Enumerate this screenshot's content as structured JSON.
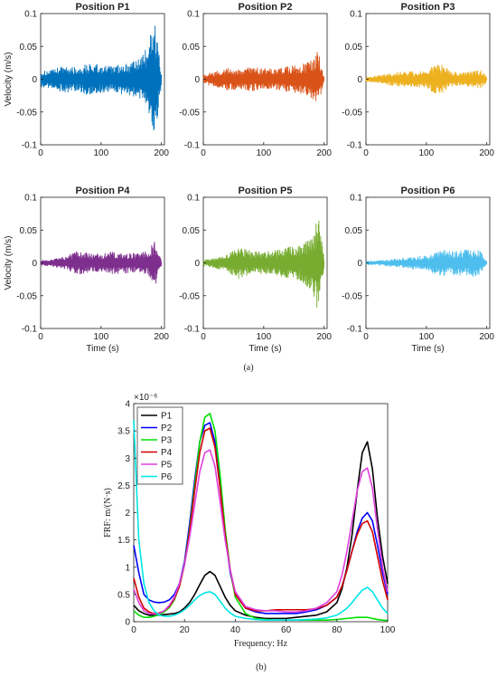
{
  "panel_a": {
    "label": "(a)",
    "ylabel": "Velocity (m/s)",
    "xlabel": "Time (s)",
    "xticks": [
      "0",
      "100",
      "200"
    ],
    "yticks": [
      "0.1",
      "0.05",
      "0",
      "-0.05",
      "-0.1"
    ]
  },
  "panel_b": {
    "label": "(b)",
    "exponent": "×10⁻⁶"
  },
  "chart_data": [
    {
      "type": "line",
      "title": "Position P1",
      "color": "#0072bd",
      "x_range": [
        0,
        200
      ],
      "ylim": [
        -0.1,
        0.1
      ],
      "ylabel": "Velocity (m/s)",
      "envelope": {
        "t": [
          0,
          20,
          40,
          60,
          80,
          100,
          120,
          140,
          160,
          170,
          180,
          185,
          190,
          195,
          200
        ],
        "amp": [
          0.012,
          0.015,
          0.022,
          0.018,
          0.025,
          0.022,
          0.02,
          0.025,
          0.028,
          0.04,
          0.06,
          0.09,
          0.085,
          0.05,
          0.01
        ]
      }
    },
    {
      "type": "line",
      "title": "Position P2",
      "color": "#d95319",
      "x_range": [
        0,
        200
      ],
      "ylim": [
        -0.1,
        0.1
      ],
      "envelope": {
        "t": [
          0,
          20,
          40,
          60,
          80,
          100,
          120,
          140,
          160,
          170,
          180,
          185,
          190,
          195,
          200
        ],
        "amp": [
          0.008,
          0.012,
          0.018,
          0.015,
          0.02,
          0.017,
          0.016,
          0.02,
          0.022,
          0.025,
          0.03,
          0.035,
          0.045,
          0.025,
          0.005
        ]
      }
    },
    {
      "type": "line",
      "title": "Position P3",
      "color": "#edb120",
      "x_range": [
        0,
        200
      ],
      "ylim": [
        -0.1,
        0.1
      ],
      "envelope": {
        "t": [
          0,
          20,
          40,
          60,
          80,
          100,
          110,
          120,
          130,
          140,
          160,
          180,
          190,
          195,
          200
        ],
        "amp": [
          0.004,
          0.006,
          0.01,
          0.012,
          0.012,
          0.013,
          0.02,
          0.025,
          0.02,
          0.012,
          0.01,
          0.014,
          0.015,
          0.01,
          0.004
        ]
      }
    },
    {
      "type": "line",
      "title": "Position P4",
      "color": "#7e2f8e",
      "x_range": [
        0,
        200
      ],
      "ylim": [
        -0.1,
        0.1
      ],
      "ylabel": "Velocity (m/s)",
      "xlabel": "Time (s)",
      "envelope": {
        "t": [
          0,
          20,
          40,
          60,
          80,
          100,
          120,
          140,
          160,
          170,
          180,
          185,
          190,
          195,
          200
        ],
        "amp": [
          0.004,
          0.006,
          0.01,
          0.018,
          0.015,
          0.014,
          0.018,
          0.016,
          0.015,
          0.018,
          0.022,
          0.03,
          0.035,
          0.02,
          0.004
        ]
      }
    },
    {
      "type": "line",
      "title": "Position P5",
      "color": "#77ac30",
      "x_range": [
        0,
        200
      ],
      "ylim": [
        -0.1,
        0.1
      ],
      "xlabel": "Time (s)",
      "envelope": {
        "t": [
          0,
          20,
          40,
          60,
          80,
          100,
          120,
          140,
          160,
          170,
          180,
          185,
          190,
          195,
          200
        ],
        "amp": [
          0.005,
          0.008,
          0.015,
          0.025,
          0.018,
          0.017,
          0.02,
          0.025,
          0.028,
          0.035,
          0.045,
          0.06,
          0.075,
          0.04,
          0.008
        ]
      }
    },
    {
      "type": "line",
      "title": "Position P6",
      "color": "#4dbeee",
      "x_range": [
        0,
        200
      ],
      "ylim": [
        -0.1,
        0.1
      ],
      "xlabel": "Time (s)",
      "envelope": {
        "t": [
          0,
          20,
          40,
          60,
          80,
          100,
          110,
          120,
          130,
          140,
          160,
          180,
          190,
          195,
          200
        ],
        "amp": [
          0.003,
          0.004,
          0.006,
          0.008,
          0.01,
          0.012,
          0.016,
          0.02,
          0.022,
          0.018,
          0.02,
          0.022,
          0.018,
          0.01,
          0.003
        ]
      }
    },
    {
      "type": "line",
      "xlabel": "Frequency: Hz",
      "ylabel": "FRF: m/(N·s)",
      "xlim": [
        0,
        100
      ],
      "ylim": [
        0,
        4
      ],
      "y_scale": "1e-6",
      "legend": "top-left",
      "xticks": [
        "0",
        "20",
        "40",
        "60",
        "80",
        "100"
      ],
      "yticks": [
        "0",
        "0.5",
        "1",
        "1.5",
        "2",
        "2.5",
        "3",
        "3.5",
        "4"
      ],
      "x": [
        0,
        2,
        4,
        6,
        8,
        10,
        12,
        14,
        16,
        18,
        20,
        22,
        24,
        26,
        28,
        30,
        32,
        34,
        36,
        38,
        40,
        44,
        48,
        52,
        56,
        60,
        64,
        68,
        72,
        76,
        80,
        82,
        84,
        86,
        88,
        90,
        92,
        94,
        96,
        98,
        100
      ],
      "series": [
        {
          "name": "P1",
          "color": "#000000",
          "values": [
            0.3,
            0.2,
            0.15,
            0.12,
            0.12,
            0.12,
            0.13,
            0.14,
            0.15,
            0.18,
            0.25,
            0.35,
            0.5,
            0.68,
            0.85,
            0.92,
            0.85,
            0.65,
            0.45,
            0.3,
            0.2,
            0.12,
            0.08,
            0.06,
            0.06,
            0.06,
            0.08,
            0.1,
            0.12,
            0.18,
            0.35,
            0.6,
            1.0,
            1.6,
            2.4,
            3.1,
            3.3,
            2.8,
            1.9,
            1.2,
            0.7
          ]
        },
        {
          "name": "P2",
          "color": "#0000ff",
          "values": [
            1.4,
            0.9,
            0.5,
            0.4,
            0.36,
            0.35,
            0.36,
            0.4,
            0.5,
            0.7,
            1.1,
            1.8,
            2.6,
            3.3,
            3.6,
            3.65,
            3.3,
            2.5,
            1.6,
            0.9,
            0.5,
            0.25,
            0.18,
            0.15,
            0.15,
            0.15,
            0.15,
            0.18,
            0.22,
            0.3,
            0.45,
            0.65,
            0.95,
            1.3,
            1.65,
            1.9,
            2.0,
            1.85,
            1.4,
            0.9,
            0.5
          ]
        },
        {
          "name": "P3",
          "color": "#00e000",
          "values": [
            0.2,
            0.12,
            0.08,
            0.08,
            0.1,
            0.13,
            0.18,
            0.26,
            0.4,
            0.65,
            1.05,
            1.7,
            2.5,
            3.3,
            3.75,
            3.82,
            3.5,
            2.7,
            1.7,
            0.95,
            0.45,
            0.15,
            0.06,
            0.04,
            0.03,
            0.03,
            0.03,
            0.03,
            0.03,
            0.03,
            0.04,
            0.05,
            0.06,
            0.07,
            0.08,
            0.08,
            0.08,
            0.06,
            0.04,
            0.03,
            0.02
          ]
        },
        {
          "name": "P4",
          "color": "#d00000",
          "values": [
            0.8,
            0.45,
            0.25,
            0.18,
            0.15,
            0.16,
            0.2,
            0.28,
            0.42,
            0.65,
            1.05,
            1.65,
            2.4,
            3.1,
            3.5,
            3.55,
            3.2,
            2.45,
            1.6,
            0.95,
            0.5,
            0.25,
            0.2,
            0.2,
            0.22,
            0.22,
            0.22,
            0.22,
            0.24,
            0.3,
            0.45,
            0.65,
            0.95,
            1.3,
            1.6,
            1.8,
            1.85,
            1.65,
            1.2,
            0.75,
            0.4
          ]
        },
        {
          "name": "P5",
          "color": "#e040e0",
          "values": [
            0.6,
            0.35,
            0.2,
            0.15,
            0.14,
            0.15,
            0.2,
            0.3,
            0.45,
            0.7,
            1.05,
            1.55,
            2.15,
            2.75,
            3.1,
            3.15,
            2.85,
            2.2,
            1.5,
            0.95,
            0.55,
            0.28,
            0.22,
            0.2,
            0.2,
            0.18,
            0.18,
            0.2,
            0.25,
            0.35,
            0.55,
            0.85,
            1.3,
            1.85,
            2.4,
            2.75,
            2.82,
            2.45,
            1.7,
            1.0,
            0.55
          ]
        },
        {
          "name": "P6",
          "color": "#00e5e5",
          "values": [
            3.7,
            1.5,
            0.7,
            0.35,
            0.2,
            0.12,
            0.1,
            0.1,
            0.12,
            0.16,
            0.22,
            0.3,
            0.4,
            0.48,
            0.53,
            0.55,
            0.5,
            0.38,
            0.25,
            0.16,
            0.1,
            0.06,
            0.04,
            0.03,
            0.03,
            0.03,
            0.03,
            0.04,
            0.05,
            0.07,
            0.12,
            0.18,
            0.25,
            0.35,
            0.47,
            0.58,
            0.63,
            0.55,
            0.4,
            0.25,
            0.15
          ]
        }
      ]
    }
  ]
}
